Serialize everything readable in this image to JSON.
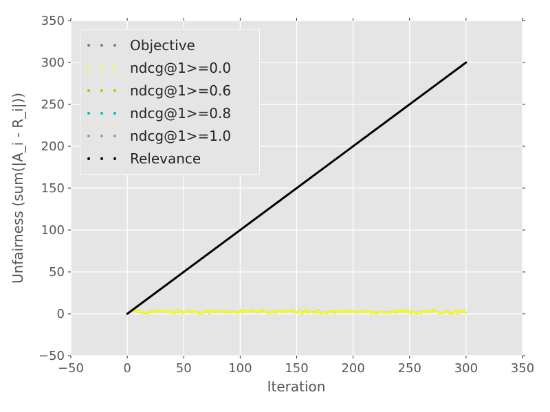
{
  "theme": {
    "figure_background": "#ffffff",
    "plot_background": "#e5e5e5",
    "grid_color": "#ffffff",
    "tick_mark_color": "#262626",
    "tick_label_color": "#555555",
    "axis_label_color": "#555555",
    "legend_background": "#e5e5e5",
    "legend_border_color": "#fbfbfb",
    "legend_text_color": "#262626"
  },
  "chart_data": {
    "type": "line",
    "title": "",
    "xlabel": "Iteration",
    "ylabel": "Unfairness (sum(|A_i - R_i|))",
    "xlim": [
      -50,
      350
    ],
    "ylim": [
      -50,
      350
    ],
    "xticks": [
      -50,
      0,
      50,
      100,
      150,
      200,
      250,
      300,
      350
    ],
    "yticks": [
      -50,
      0,
      50,
      100,
      150,
      200,
      250,
      300,
      350
    ],
    "grid": true,
    "legend_position": "upper-left",
    "series": [
      {
        "name": "Objective",
        "color": "#7f7f7f",
        "marker": "dotted",
        "shape": "noisy-flat",
        "x_start": 0,
        "x_end": 300,
        "y_mean": 2.5,
        "y_noise": 2,
        "visible_in_plot": false
      },
      {
        "name": "ndcg@1>=0.0",
        "color": "#ffff00",
        "marker": "dotted",
        "shape": "noisy-flat",
        "x_start": 0,
        "x_end": 300,
        "y_mean": 2.5,
        "y_noise": 2,
        "visible_in_plot": true
      },
      {
        "name": "ndcg@1>=0.6",
        "color": "#bfbf00",
        "marker": "dotted",
        "shape": "noisy-flat",
        "x_start": 0,
        "x_end": 300,
        "y_mean": 2.5,
        "y_noise": 2,
        "visible_in_plot": false
      },
      {
        "name": "ndcg@1>=0.8",
        "color": "#00bfbf",
        "marker": "dotted",
        "shape": "noisy-flat",
        "x_start": 0,
        "x_end": 300,
        "y_mean": 2.5,
        "y_noise": 2,
        "visible_in_plot": false
      },
      {
        "name": "ndcg@1>=1.0",
        "color": "#bc8f8f",
        "marker": "dotted",
        "shape": "noisy-flat",
        "x_start": 0,
        "x_end": 300,
        "y_mean": 2.5,
        "y_noise": 2,
        "visible_in_plot": false
      },
      {
        "name": "Relevance",
        "color": "#000000",
        "marker": "dotted",
        "shape": "linear",
        "x_start": 0,
        "x_end": 300,
        "y_start": 0,
        "y_end": 300,
        "visible_in_plot": true
      }
    ]
  }
}
